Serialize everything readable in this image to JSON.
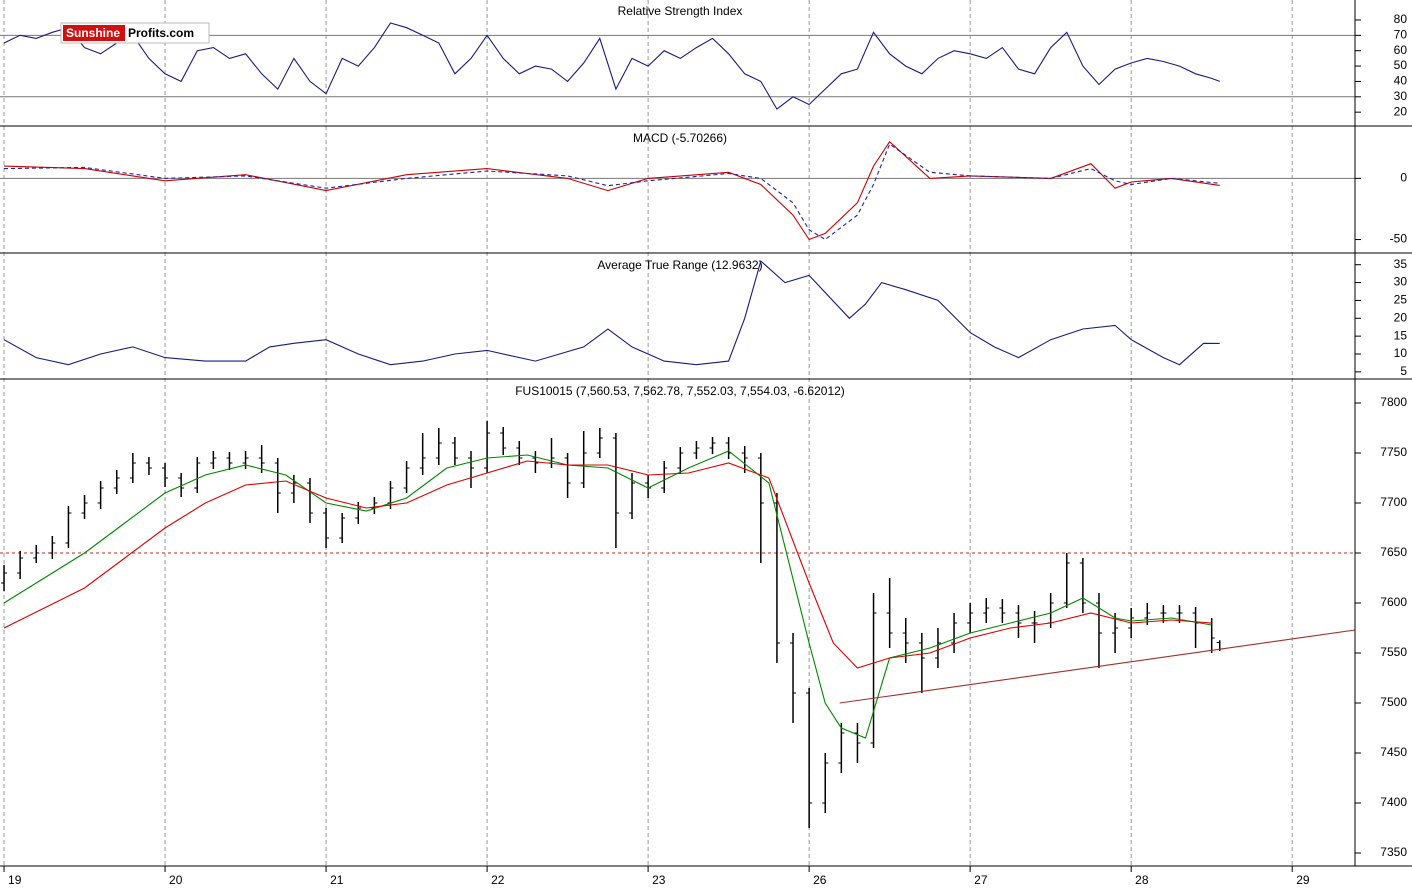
{
  "logo": {
    "part1": "Sunshine",
    "part2": "Profits.com"
  },
  "chart_data": [
    {
      "type": "line",
      "title": "Relative Strength Index",
      "ylim": [
        11,
        93
      ],
      "yticks": [
        20,
        30,
        40,
        50,
        60,
        70,
        80
      ],
      "xlim": [
        -0.025,
        8.39
      ],
      "hlines": [
        70,
        30
      ],
      "x": [
        0,
        0.1,
        0.2,
        0.3,
        0.4,
        0.5,
        0.6,
        0.7,
        0.8,
        0.9,
        1.0,
        1.1,
        1.2,
        1.3,
        1.4,
        1.5,
        1.6,
        1.7,
        1.8,
        1.9,
        2.0,
        2.1,
        2.2,
        2.3,
        2.4,
        2.5,
        2.6,
        2.7,
        2.8,
        2.9,
        3.0,
        3.1,
        3.2,
        3.3,
        3.4,
        3.5,
        3.6,
        3.7,
        3.8,
        3.9,
        4.0,
        4.1,
        4.2,
        4.3,
        4.4,
        4.5,
        4.6,
        4.7,
        4.8,
        4.9,
        5.0,
        5.1,
        5.2,
        5.3,
        5.4,
        5.5,
        5.6,
        5.7,
        5.8,
        5.9,
        6.0,
        6.1,
        6.2,
        6.3,
        6.4,
        6.5,
        6.6,
        6.7,
        6.8,
        6.9,
        7.0,
        7.1,
        7.2,
        7.3,
        7.4,
        7.5,
        7.55
      ],
      "series": [
        {
          "color": "#1a1a80",
          "values": [
            65,
            70,
            68,
            72,
            75,
            62,
            58,
            65,
            70,
            55,
            45,
            40,
            60,
            62,
            55,
            58,
            45,
            35,
            55,
            40,
            32,
            55,
            50,
            62,
            78,
            75,
            70,
            65,
            45,
            55,
            70,
            55,
            45,
            50,
            48,
            40,
            52,
            68,
            35,
            55,
            50,
            60,
            55,
            62,
            68,
            58,
            45,
            40,
            22,
            30,
            25,
            35,
            45,
            48,
            72,
            58,
            50,
            45,
            55,
            60,
            58,
            55,
            62,
            48,
            45,
            62,
            72,
            50,
            38,
            48,
            52,
            55,
            53,
            50,
            45,
            42,
            40
          ]
        }
      ]
    },
    {
      "type": "line",
      "title": "MACD (-5.70266)",
      "ylim": [
        -61,
        42
      ],
      "yticks": [
        -50,
        0
      ],
      "xlim": [
        -0.025,
        8.39
      ],
      "hlines": [
        0
      ],
      "x": [
        0,
        0.5,
        1.0,
        1.5,
        2.0,
        2.5,
        3.0,
        3.5,
        3.75,
        4.0,
        4.5,
        4.7,
        4.9,
        5.0,
        5.1,
        5.3,
        5.4,
        5.5,
        5.75,
        6.0,
        6.5,
        6.75,
        6.9,
        7.0,
        7.25,
        7.55
      ],
      "series": [
        {
          "color": "#cc0000",
          "values": [
            10,
            8,
            -2,
            3,
            -10,
            3,
            8,
            0,
            -10,
            0,
            5,
            -5,
            -30,
            -50,
            -45,
            -20,
            10,
            30,
            0,
            2,
            0,
            12,
            -8,
            -3,
            0,
            -5.7
          ]
        },
        {
          "color": "#2222aa",
          "dash": true,
          "values": [
            8,
            9,
            0,
            2,
            -8,
            0,
            6,
            2,
            -6,
            -2,
            4,
            0,
            -20,
            -42,
            -50,
            -30,
            -5,
            28,
            5,
            2,
            0,
            8,
            -2,
            -5,
            0,
            -4
          ]
        }
      ]
    },
    {
      "type": "line",
      "title": "Average True Range (12.9632)",
      "ylim": [
        3,
        38
      ],
      "yticks": [
        5,
        10,
        15,
        20,
        25,
        30,
        35
      ],
      "xlim": [
        -0.025,
        8.39
      ],
      "x": [
        0,
        0.2,
        0.4,
        0.6,
        0.8,
        1.0,
        1.25,
        1.5,
        1.65,
        1.8,
        2.0,
        2.2,
        2.4,
        2.6,
        2.8,
        3.0,
        3.3,
        3.6,
        3.75,
        3.9,
        4.1,
        4.3,
        4.5,
        4.6,
        4.7,
        4.85,
        5.0,
        5.25,
        5.35,
        5.45,
        5.6,
        5.8,
        6.0,
        6.15,
        6.3,
        6.5,
        6.7,
        6.9,
        7.0,
        7.2,
        7.3,
        7.45,
        7.55
      ],
      "series": [
        {
          "color": "#1a1a80",
          "values": [
            14,
            9,
            7,
            10,
            12,
            9,
            8,
            8,
            12,
            13,
            14,
            10,
            7,
            8,
            10,
            11,
            8,
            12,
            17,
            12,
            8,
            7,
            8,
            20,
            36,
            30,
            32,
            20,
            24,
            30,
            28,
            25,
            16,
            12,
            9,
            14,
            17,
            18,
            14,
            9,
            7,
            13,
            12.9632
          ]
        }
      ]
    },
    {
      "type": "ohlc",
      "title": "FUS10015 (7,560.53, 7,562.78, 7,552.03, 7,554.03, -6.62012)",
      "ylim": [
        7337,
        7823
      ],
      "yticks": [
        7350,
        7400,
        7450,
        7500,
        7550,
        7600,
        7650,
        7700,
        7750,
        7800
      ],
      "xlim": [
        -0.025,
        8.39
      ],
      "xticks": [
        {
          "value": 0,
          "label": "19"
        },
        {
          "value": 1,
          "label": "20"
        },
        {
          "value": 2,
          "label": "21"
        },
        {
          "value": 3,
          "label": "22"
        },
        {
          "value": 4,
          "label": "23"
        },
        {
          "value": 5,
          "label": "26"
        },
        {
          "value": 6,
          "label": "27"
        },
        {
          "value": 7,
          "label": "28"
        },
        {
          "value": 8,
          "label": "29"
        }
      ],
      "grid": true,
      "color": "#000000",
      "hlines": [
        {
          "value": 7650,
          "color": "#cc2222",
          "dash": true
        }
      ],
      "x": [
        0,
        0.1,
        0.2,
        0.3,
        0.4,
        0.5,
        0.6,
        0.7,
        0.8,
        0.9,
        1.0,
        1.1,
        1.2,
        1.3,
        1.4,
        1.5,
        1.6,
        1.7,
        1.8,
        1.9,
        2.0,
        2.1,
        2.2,
        2.3,
        2.4,
        2.5,
        2.6,
        2.7,
        2.8,
        2.9,
        3.0,
        3.1,
        3.2,
        3.3,
        3.4,
        3.5,
        3.6,
        3.7,
        3.8,
        3.9,
        4.0,
        4.1,
        4.2,
        4.3,
        4.4,
        4.5,
        4.6,
        4.7,
        4.8,
        4.9,
        5.0,
        5.1,
        5.2,
        5.3,
        5.4,
        5.5,
        5.6,
        5.7,
        5.8,
        5.9,
        6.0,
        6.1,
        6.2,
        6.3,
        6.4,
        6.5,
        6.6,
        6.7,
        6.8,
        6.9,
        7.0,
        7.1,
        7.2,
        7.3,
        7.4,
        7.5,
        7.55
      ],
      "ohlc": [
        [
          7620,
          7638,
          7612,
          7630
        ],
        [
          7630,
          7652,
          7624,
          7645
        ],
        [
          7645,
          7658,
          7640,
          7650
        ],
        [
          7650,
          7667,
          7644,
          7660
        ],
        [
          7660,
          7697,
          7655,
          7690
        ],
        [
          7690,
          7708,
          7684,
          7700
        ],
        [
          7700,
          7722,
          7694,
          7715
        ],
        [
          7715,
          7733,
          7709,
          7725
        ],
        [
          7725,
          7750,
          7720,
          7740
        ],
        [
          7740,
          7746,
          7728,
          7735
        ],
        [
          7735,
          7740,
          7716,
          7725
        ],
        [
          7725,
          7730,
          7706,
          7715
        ],
        [
          7715,
          7746,
          7710,
          7740
        ],
        [
          7740,
          7752,
          7734,
          7745
        ],
        [
          7745,
          7751,
          7733,
          7740
        ],
        [
          7740,
          7752,
          7734,
          7745
        ],
        [
          7745,
          7758,
          7730,
          7740
        ],
        [
          7740,
          7745,
          7690,
          7710
        ],
        [
          7710,
          7728,
          7700,
          7720
        ],
        [
          7720,
          7725,
          7680,
          7690
        ],
        [
          7690,
          7695,
          7655,
          7665
        ],
        [
          7665,
          7690,
          7660,
          7685
        ],
        [
          7685,
          7701,
          7679,
          7695
        ],
        [
          7695,
          7706,
          7689,
          7700
        ],
        [
          7700,
          7722,
          7694,
          7715
        ],
        [
          7715,
          7742,
          7710,
          7735
        ],
        [
          7735,
          7770,
          7728,
          7745
        ],
        [
          7745,
          7775,
          7738,
          7760
        ],
        [
          7760,
          7766,
          7738,
          7745
        ],
        [
          7745,
          7752,
          7715,
          7735
        ],
        [
          7735,
          7782,
          7730,
          7770
        ],
        [
          7770,
          7776,
          7748,
          7755
        ],
        [
          7755,
          7762,
          7738,
          7745
        ],
        [
          7745,
          7752,
          7730,
          7740
        ],
        [
          7740,
          7765,
          7735,
          7745
        ],
        [
          7745,
          7750,
          7705,
          7720
        ],
        [
          7720,
          7772,
          7715,
          7750
        ],
        [
          7750,
          7775,
          7745,
          7765
        ],
        [
          7765,
          7770,
          7655,
          7690
        ],
        [
          7690,
          7730,
          7684,
          7720
        ],
        [
          7720,
          7728,
          7705,
          7715
        ],
        [
          7715,
          7742,
          7710,
          7735
        ],
        [
          7735,
          7756,
          7729,
          7750
        ],
        [
          7750,
          7762,
          7744,
          7755
        ],
        [
          7755,
          7766,
          7749,
          7760
        ],
        [
          7760,
          7766,
          7744,
          7750
        ],
        [
          7750,
          7757,
          7730,
          7745
        ],
        [
          7745,
          7750,
          7640,
          7700
        ],
        [
          7700,
          7710,
          7540,
          7560
        ],
        [
          7560,
          7570,
          7480,
          7510
        ],
        [
          7510,
          7515,
          7375,
          7400
        ],
        [
          7400,
          7450,
          7390,
          7440
        ],
        [
          7440,
          7480,
          7430,
          7470
        ],
        [
          7470,
          7480,
          7440,
          7460
        ],
        [
          7460,
          7610,
          7455,
          7590
        ],
        [
          7590,
          7625,
          7555,
          7570
        ],
        [
          7570,
          7585,
          7540,
          7560
        ],
        [
          7560,
          7570,
          7510,
          7545
        ],
        [
          7545,
          7575,
          7535,
          7560
        ],
        [
          7560,
          7590,
          7550,
          7580
        ],
        [
          7580,
          7600,
          7570,
          7590
        ],
        [
          7590,
          7605,
          7580,
          7595
        ],
        [
          7595,
          7604,
          7580,
          7590
        ],
        [
          7590,
          7598,
          7565,
          7580
        ],
        [
          7580,
          7592,
          7560,
          7580
        ],
        [
          7580,
          7610,
          7575,
          7600
        ],
        [
          7600,
          7650,
          7595,
          7640
        ],
        [
          7640,
          7645,
          7590,
          7600
        ],
        [
          7600,
          7610,
          7535,
          7570
        ],
        [
          7570,
          7590,
          7550,
          7575
        ],
        [
          7575,
          7595,
          7565,
          7585
        ],
        [
          7585,
          7600,
          7578,
          7590
        ],
        [
          7590,
          7598,
          7580,
          7590
        ],
        [
          7590,
          7598,
          7580,
          7590
        ],
        [
          7590,
          7596,
          7555,
          7580
        ],
        [
          7580,
          7585,
          7550,
          7565
        ],
        [
          7560.53,
          7562.78,
          7552.03,
          7554.03
        ]
      ],
      "series": [
        {
          "color": "#008800",
          "x": [
            0,
            0.25,
            0.5,
            0.75,
            1.0,
            1.25,
            1.5,
            1.75,
            2.0,
            2.25,
            2.5,
            2.75,
            3.0,
            3.25,
            3.5,
            3.75,
            4.0,
            4.25,
            4.5,
            4.75,
            5.0,
            5.1,
            5.2,
            5.35,
            5.5,
            5.75,
            6.0,
            6.25,
            6.5,
            6.7,
            6.9,
            7.0,
            7.25,
            7.5
          ],
          "values": [
            7600,
            7625,
            7650,
            7680,
            7710,
            7728,
            7738,
            7728,
            7700,
            7692,
            7705,
            7735,
            7745,
            7748,
            7738,
            7735,
            7715,
            7735,
            7752,
            7720,
            7560,
            7500,
            7475,
            7465,
            7545,
            7555,
            7570,
            7580,
            7590,
            7605,
            7585,
            7582,
            7585,
            7578
          ]
        },
        {
          "color": "#dd0000",
          "x": [
            0,
            0.25,
            0.5,
            0.75,
            1.0,
            1.25,
            1.5,
            1.75,
            2.0,
            2.25,
            2.5,
            2.75,
            3.0,
            3.25,
            3.5,
            3.75,
            4.0,
            4.25,
            4.5,
            4.75,
            5.0,
            5.15,
            5.3,
            5.5,
            5.75,
            6.0,
            6.25,
            6.5,
            6.75,
            7.0,
            7.25,
            7.5
          ],
          "values": [
            7575,
            7595,
            7615,
            7645,
            7675,
            7700,
            7718,
            7722,
            7705,
            7695,
            7700,
            7718,
            7730,
            7742,
            7738,
            7738,
            7728,
            7730,
            7740,
            7725,
            7620,
            7560,
            7535,
            7545,
            7550,
            7565,
            7575,
            7580,
            7590,
            7580,
            7583,
            7580
          ]
        }
      ],
      "trendline": {
        "color": "#a0302a",
        "x": [
          5.19,
          8.39
        ],
        "values": [
          7500,
          7573
        ]
      }
    }
  ]
}
